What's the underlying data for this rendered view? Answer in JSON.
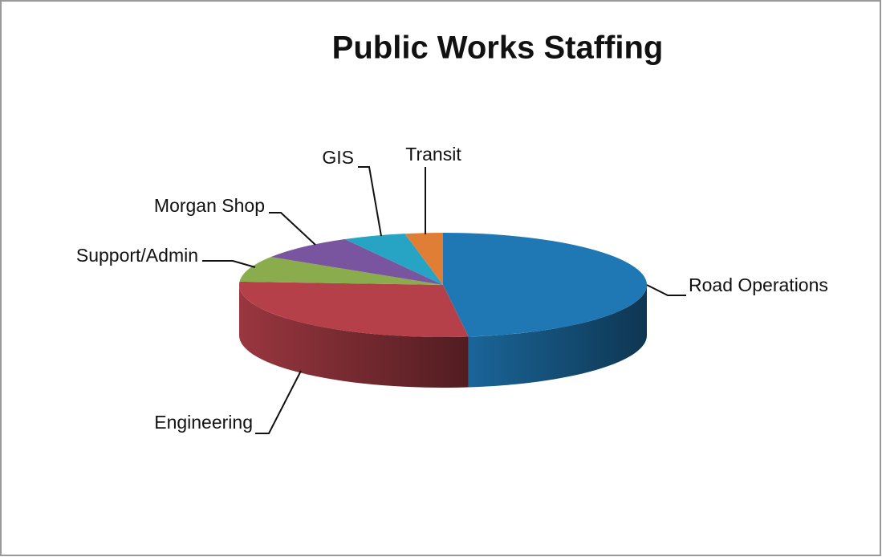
{
  "chart_data": {
    "type": "pie3d",
    "title": "Public Works Staffing",
    "categories": [
      "Road Operations",
      "Engineering",
      "Support/Admin",
      "Morgan Shop",
      "GIS",
      "Transit"
    ],
    "values": [
      48,
      28,
      8,
      8,
      5,
      3
    ],
    "colors": [
      "#1f77b4",
      "#b5404a",
      "#8aac4c",
      "#7a559f",
      "#27a3c4",
      "#e07e35"
    ]
  }
}
